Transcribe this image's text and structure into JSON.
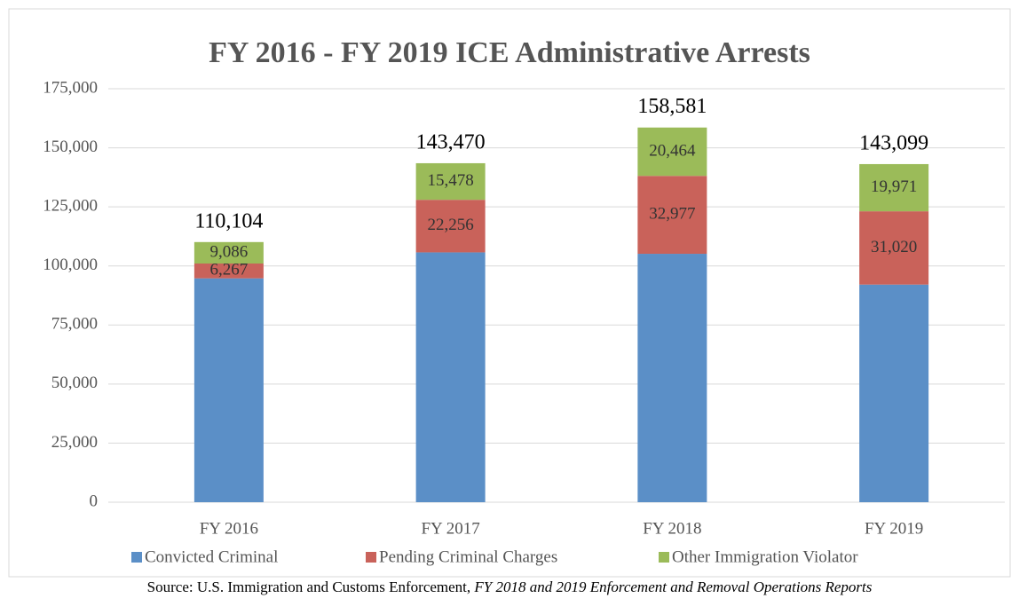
{
  "chart_data": {
    "type": "stacked_bar",
    "title": "FY 2016 - FY 2019 ICE Administrative Arrests",
    "categories": [
      "FY 2016",
      "FY 2017",
      "FY 2018",
      "FY 2019"
    ],
    "series": [
      {
        "name": "Convicted Criminal",
        "color": "#5b8fc7",
        "values": [
          94751,
          105736,
          105140,
          92108
        ]
      },
      {
        "name": "Pending Criminal Charges",
        "color": "#c9625a",
        "values": [
          6267,
          22256,
          32977,
          31020
        ],
        "value_labels": [
          "6,267",
          "22,256",
          "32,977",
          "31,020"
        ]
      },
      {
        "name": "Other Immigration Violator",
        "color": "#9bbb59",
        "values": [
          9086,
          15478,
          20464,
          19971
        ],
        "value_labels": [
          "9,086",
          "15,478",
          "20,464",
          "19,971"
        ]
      }
    ],
    "totals": [
      110104,
      143470,
      158581,
      143099
    ],
    "total_labels": [
      "110,104",
      "143,470",
      "158,581",
      "143,099"
    ],
    "ylim": [
      0,
      175000
    ],
    "yticks": [
      0,
      {
        "value": 25000,
        "label": "25,000"
      },
      {
        "value": 50000,
        "label": "50,000"
      },
      {
        "value": 75000,
        "label": "75,000"
      },
      {
        "value": 100000,
        "label": "100,000"
      },
      {
        "value": 125000,
        "label": "125,000"
      },
      {
        "value": 150000,
        "label": "150,000"
      },
      {
        "value": 175000,
        "label": "175,000"
      }
    ],
    "grid": true,
    "legend": "bottom",
    "source": "Source: U.S. Immigration and Customs Enforcement, ",
    "source_title": "FY 2018 and 2019 Enforcement and Removal Operations Reports"
  }
}
